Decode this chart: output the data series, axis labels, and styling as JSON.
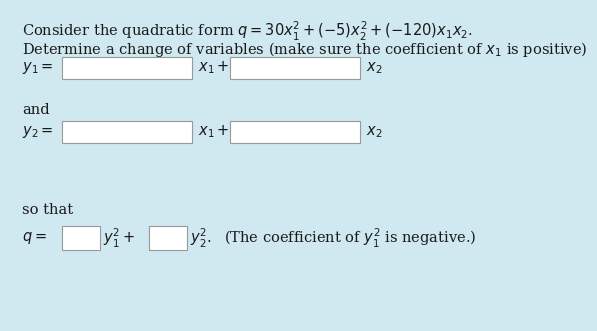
{
  "bg_color": "#d0e8f0",
  "text_color": "#1a1a1a",
  "box_color": "white",
  "box_edge_color": "#999999",
  "font_size": 10.5,
  "font_size_small": 10.5,
  "line1": "Consider the quadratic form $q = 30x_1^2 + (-5)x_2^2 + (-120)x_1x_2$.",
  "line2": "Determine a change of variables (make sure the coefficient of $x_1$ is positive)",
  "y1_label": "$y_1 =$",
  "y2_label": "$y_2 =$",
  "q_label": "$q =$",
  "x1plus": "$x_1+$",
  "x2": "$x_2$",
  "y1sq": "$y_1^2 +$",
  "y2sq": "$y_2^2.$",
  "and_text": "and",
  "sothat_text": "so that",
  "note_text": "(The coefficient of $y_1^2$ is negative.)"
}
